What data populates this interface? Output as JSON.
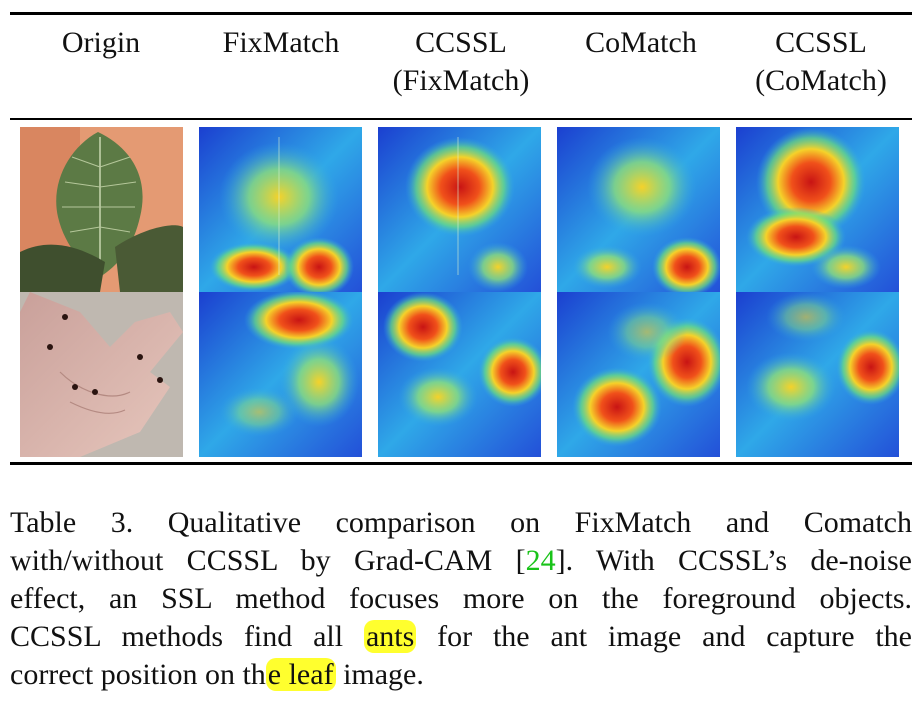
{
  "table": {
    "columns": [
      {
        "line1": "Origin",
        "line2": ""
      },
      {
        "line1": "FixMatch",
        "line2": ""
      },
      {
        "line1": "CCSSL",
        "line2": "(FixMatch)"
      },
      {
        "line1": "CoMatch",
        "line2": ""
      },
      {
        "line1": "CCSSL",
        "line2": "(CoMatch)"
      }
    ]
  },
  "caption": {
    "l1": "Table 3.   Qualitative comparison on FixMatch and Comatch",
    "l2a": "with/without CCSSL by Grad-CAM [",
    "l2cite": "24",
    "l2b": "]. With CCSSL’s de-noise",
    "l3": "effect, an SSL method focuses more on the foreground objects.",
    "l4a": "CCSSL methods find all ",
    "l4hl": "ants",
    "l4b": " for the ant image and capture the",
    "l5a": "correct position on th",
    "l5hl": "e leaf",
    "l5b": " image."
  },
  "colors": {
    "citation": "#19c319",
    "highlight": "#ffff2e",
    "rule": "#000000"
  }
}
